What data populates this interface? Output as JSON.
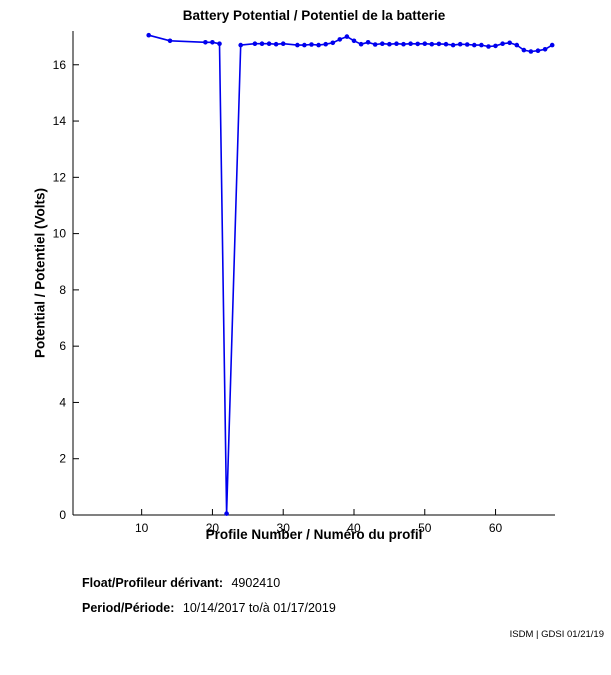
{
  "title": "Battery Potential / Potentiel de la batterie",
  "chart_data": {
    "type": "line",
    "title": "Battery Potential / Potentiel de la batterie",
    "xlabel": "Profile Number / Numéro du profil",
    "ylabel": "Potential / Potentiel (Volts)",
    "xlim": [
      0.3,
      68.4
    ],
    "ylim": [
      0,
      17.2
    ],
    "xticks": [
      10,
      20,
      30,
      40,
      50,
      60
    ],
    "yticks": [
      0,
      2,
      4,
      6,
      8,
      10,
      12,
      14,
      16
    ],
    "grid": false,
    "legend": "none",
    "series": [
      {
        "name": "battery-potential-volts",
        "color": "#0000EE",
        "marker": "dot",
        "points": [
          [
            11,
            17.05
          ],
          [
            14,
            16.85
          ],
          [
            19,
            16.8
          ],
          [
            20,
            16.8
          ],
          [
            21,
            16.75
          ],
          [
            22,
            0.05
          ],
          [
            24,
            16.7
          ],
          [
            26,
            16.75
          ],
          [
            27,
            16.75
          ],
          [
            28,
            16.75
          ],
          [
            29,
            16.73
          ],
          [
            30,
            16.75
          ],
          [
            32,
            16.7
          ],
          [
            33,
            16.7
          ],
          [
            34,
            16.72
          ],
          [
            35,
            16.7
          ],
          [
            36,
            16.73
          ],
          [
            37,
            16.78
          ],
          [
            38,
            16.9
          ],
          [
            39,
            17.0
          ],
          [
            40,
            16.85
          ],
          [
            41,
            16.73
          ],
          [
            42,
            16.8
          ],
          [
            43,
            16.72
          ],
          [
            44,
            16.75
          ],
          [
            45,
            16.73
          ],
          [
            46,
            16.75
          ],
          [
            47,
            16.73
          ],
          [
            48,
            16.75
          ],
          [
            49,
            16.74
          ],
          [
            50,
            16.75
          ],
          [
            51,
            16.73
          ],
          [
            52,
            16.74
          ],
          [
            53,
            16.73
          ],
          [
            54,
            16.7
          ],
          [
            55,
            16.73
          ],
          [
            56,
            16.72
          ],
          [
            57,
            16.7
          ],
          [
            58,
            16.7
          ],
          [
            59,
            16.65
          ],
          [
            60,
            16.67
          ],
          [
            61,
            16.75
          ],
          [
            62,
            16.78
          ],
          [
            63,
            16.7
          ],
          [
            64,
            16.52
          ],
          [
            65,
            16.47
          ],
          [
            66,
            16.5
          ],
          [
            67,
            16.55
          ],
          [
            68,
            16.7
          ]
        ]
      }
    ]
  },
  "footer": {
    "float_label": "Float/Profileur dérivant:",
    "float_value": "4902410",
    "period_label": "Period/Période:",
    "period_value": "10/14/2017  to/à  01/17/2019"
  },
  "watermark": "ISDM | GDSI 01/21/19"
}
